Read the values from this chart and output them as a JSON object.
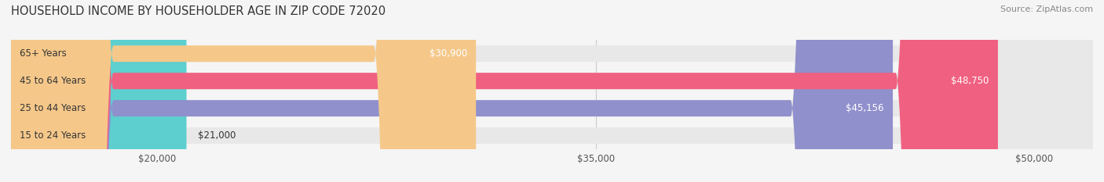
{
  "title": "HOUSEHOLD INCOME BY HOUSEHOLDER AGE IN ZIP CODE 72020",
  "source": "Source: ZipAtlas.com",
  "categories": [
    "15 to 24 Years",
    "25 to 44 Years",
    "45 to 64 Years",
    "65+ Years"
  ],
  "values": [
    21000,
    45156,
    48750,
    30900
  ],
  "bar_colors": [
    "#5ecfcf",
    "#9090cc",
    "#f06080",
    "#f5c88a"
  ],
  "bar_labels": [
    "$21,000",
    "$45,156",
    "$48,750",
    "$30,900"
  ],
  "xmin": 15000,
  "xmax": 52000,
  "xticks": [
    20000,
    35000,
    50000
  ],
  "xtick_labels": [
    "$20,000",
    "$35,000",
    "$50,000"
  ],
  "background_color": "#f5f5f5",
  "bar_bg_color": "#e8e8e8",
  "title_fontsize": 10.5,
  "source_fontsize": 8,
  "label_fontsize": 8.5,
  "tick_fontsize": 8.5,
  "bar_height": 0.6
}
